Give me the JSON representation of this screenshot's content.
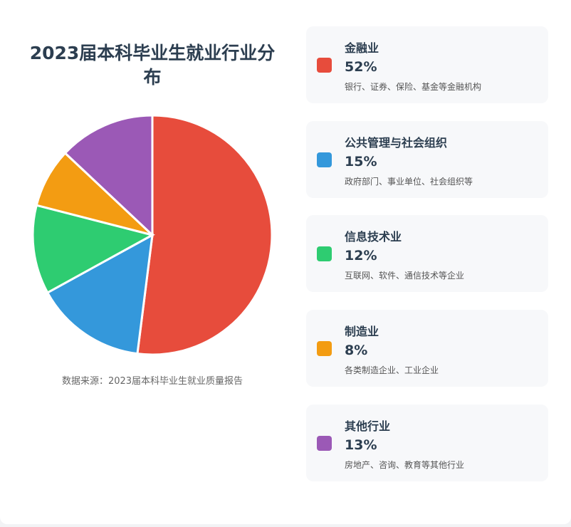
{
  "chart_data": {
    "type": "pie",
    "title": "2023届本科毕业生就业行业分布",
    "source": "数据来源：2023届本科毕业生就业质量报告",
    "slices": [
      {
        "name": "金融业",
        "value": 52,
        "label": "52%",
        "desc": "银行、证券、保险、基金等金融机构",
        "color": "#e74c3c"
      },
      {
        "name": "公共管理与社会组织",
        "value": 15,
        "label": "15%",
        "desc": "政府部门、事业单位、社会组织等",
        "color": "#3498db"
      },
      {
        "name": "信息技术业",
        "value": 12,
        "label": "12%",
        "desc": "互联网、软件、通信技术等企业",
        "color": "#2ecc71"
      },
      {
        "name": "制造业",
        "value": 8,
        "label": "8%",
        "desc": "各类制造企业、工业企业",
        "color": "#f39c12"
      },
      {
        "name": "其他行业",
        "value": 13,
        "label": "13%",
        "desc": "房地产、咨询、教育等其他行业",
        "color": "#9b59b6"
      }
    ],
    "legend_placement": "right"
  }
}
